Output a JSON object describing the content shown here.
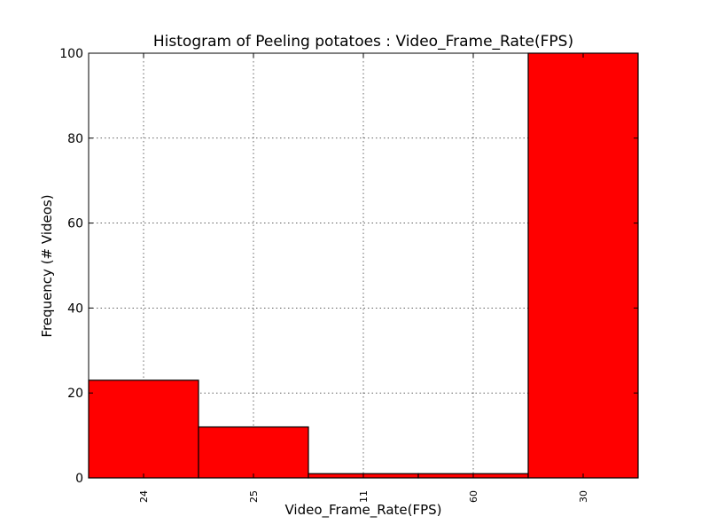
{
  "chart_data": {
    "type": "bar",
    "title": "Histogram of Peeling potatoes : Video_Frame_Rate(FPS)",
    "xlabel": "Video_Frame_Rate(FPS)",
    "ylabel": "Frequency (# Videos)",
    "categories": [
      "24",
      "25",
      "11",
      "60",
      "30"
    ],
    "values": [
      23,
      12,
      1,
      1,
      100
    ],
    "ylim": [
      0,
      100
    ],
    "yticks": [
      0,
      20,
      40,
      60,
      80,
      100
    ],
    "grid": true,
    "bar_color": "#ff0000",
    "edge_color": "#000000"
  }
}
